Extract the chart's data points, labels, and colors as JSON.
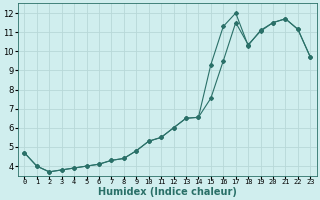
{
  "xlabel": "Humidex (Indice chaleur)",
  "ylabel": "",
  "background_color": "#d0eeee",
  "grid_color": "#b8d8d8",
  "line_color": "#2a7068",
  "xlim": [
    -0.5,
    23.5
  ],
  "ylim": [
    3.5,
    12.5
  ],
  "yticks": [
    4,
    5,
    6,
    7,
    8,
    9,
    10,
    11,
    12
  ],
  "xticks": [
    0,
    1,
    2,
    3,
    4,
    5,
    6,
    7,
    8,
    9,
    10,
    11,
    12,
    13,
    14,
    15,
    16,
    17,
    18,
    19,
    20,
    21,
    22,
    23
  ],
  "line1_x": [
    0,
    1,
    2,
    3,
    4,
    5,
    6,
    7,
    8,
    9,
    10,
    11,
    12,
    13,
    14,
    15,
    16,
    17,
    18,
    19,
    20,
    21,
    22,
    23
  ],
  "line1_y": [
    4.7,
    4.0,
    3.7,
    3.8,
    3.9,
    4.0,
    4.1,
    4.3,
    4.4,
    4.8,
    5.3,
    5.5,
    6.0,
    6.5,
    6.55,
    7.55,
    9.5,
    11.5,
    10.35,
    11.05,
    11.5,
    11.7,
    11.15,
    9.7
  ],
  "line2_x": [
    0,
    1,
    2,
    3,
    4,
    5,
    6,
    7,
    8,
    9,
    10,
    11,
    12,
    13,
    14,
    15,
    16,
    17,
    18,
    19,
    20,
    21,
    22,
    23
  ],
  "line2_y": [
    4.7,
    4.0,
    3.7,
    3.8,
    3.9,
    4.0,
    4.1,
    4.3,
    4.4,
    4.8,
    5.3,
    5.5,
    6.0,
    6.5,
    6.55,
    9.3,
    11.3,
    12.0,
    10.3,
    11.1,
    11.5,
    11.7,
    11.15,
    9.7
  ],
  "xlabel_fontsize": 7,
  "tick_fontsize": 5,
  "ytick_fontsize": 6
}
